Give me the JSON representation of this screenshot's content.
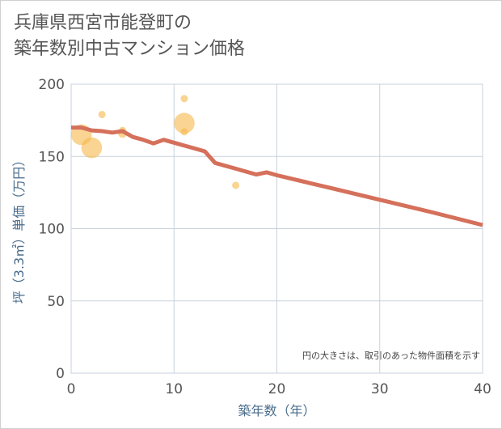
{
  "title_line1": "兵庫県西宮市能登町の",
  "title_line2": "築年数別中古マンション価格",
  "chart_data": {
    "type": "scatter+line",
    "title": "兵庫県西宮市能登町の 築年数別中古マンション価格",
    "xlabel": "築年数（年）",
    "ylabel": "坪（3.3㎡）単価（万円）",
    "xlim": [
      0,
      40
    ],
    "ylim": [
      0,
      200
    ],
    "xticks": [
      0,
      10,
      20,
      30,
      40
    ],
    "yticks": [
      0,
      50,
      100,
      150,
      200
    ],
    "grid": true,
    "note": "円の大きさは、取引のあった物件面積を示す",
    "colors": {
      "line": "#d5705b",
      "bubble": "#f5b84a",
      "grid": "#c8d2dc"
    },
    "scatter": [
      {
        "x": 1,
        "y": 165,
        "size": 3
      },
      {
        "x": 2,
        "y": 156,
        "size": 3
      },
      {
        "x": 3,
        "y": 179,
        "size": 1
      },
      {
        "x": 5,
        "y": 168,
        "size": 1
      },
      {
        "x": 5,
        "y": 166,
        "size": 1.5
      },
      {
        "x": 11,
        "y": 190,
        "size": 1
      },
      {
        "x": 11,
        "y": 173,
        "size": 3
      },
      {
        "x": 11,
        "y": 167,
        "size": 1
      },
      {
        "x": 16,
        "y": 130,
        "size": 1
      }
    ],
    "line": {
      "x": [
        0,
        1,
        2,
        3,
        4,
        5,
        6,
        7,
        8,
        9,
        10,
        11,
        12,
        13,
        14,
        15,
        16,
        17,
        18,
        19,
        20,
        25,
        30,
        35,
        40
      ],
      "y": [
        170,
        170,
        168,
        167.5,
        166.5,
        167.5,
        163.5,
        161.5,
        159,
        161.5,
        159.5,
        157.5,
        155.5,
        153.5,
        145.5,
        143.5,
        141.5,
        139.5,
        137.5,
        139,
        137,
        128.5,
        120,
        111.5,
        102.5
      ]
    }
  }
}
